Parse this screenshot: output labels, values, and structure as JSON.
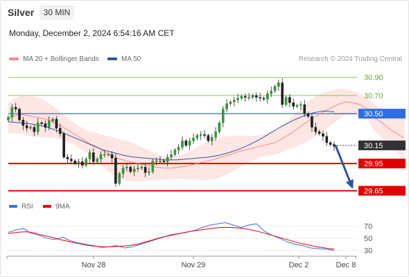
{
  "header": {
    "instrument": "Silver",
    "interval": "30 MIN",
    "datetime": "Monday, December 2, 2024 6:54:16 AM CET"
  },
  "legend": {
    "bollinger": {
      "label": "MA 20 + Bollinger Bands",
      "color": "#f28b82"
    },
    "ma50": {
      "label": "MA 50",
      "color": "#2f5597"
    },
    "copyright": "Research © 2024 Trading Central"
  },
  "price_levels": [
    {
      "value": "30.90",
      "color": "#8bc34a",
      "style": "line"
    },
    {
      "value": "30.70",
      "color": "#8bc34a",
      "style": "line"
    },
    {
      "value": "30.50",
      "color": "#2f6fe0",
      "style": "box"
    },
    {
      "value": "30.15",
      "color": "#333333",
      "style": "box"
    },
    {
      "value": "29.95",
      "color": "#e00000",
      "style": "box"
    },
    {
      "value": "29.65",
      "color": "#e00000",
      "style": "box"
    }
  ],
  "rsi_legend": {
    "rsi": {
      "label": "RSI",
      "color": "#3a6fd8"
    },
    "ma9": {
      "label": "9MA",
      "color": "#e00000"
    }
  },
  "rsi_levels": [
    "70",
    "50",
    "30"
  ],
  "x_axis": [
    "Nov 28",
    "Nov 29",
    "Dec 2",
    "Dec 8"
  ],
  "chart_data": [
    {
      "type": "candlestick",
      "y_range": [
        29.6,
        31.02
      ],
      "levels": [
        30.9,
        30.7,
        30.5,
        30.15,
        29.95,
        29.65
      ],
      "close": [
        30.46,
        30.57,
        30.55,
        30.43,
        30.37,
        30.34,
        30.35,
        30.3,
        30.4,
        30.39,
        30.35,
        30.42,
        30.44,
        30.34,
        30.28,
        30.02,
        30.0,
        29.98,
        29.95,
        29.97,
        29.93,
        30.0,
        30.07,
        29.97,
        30.0,
        30.05,
        30.05,
        30.05,
        30.01,
        29.73,
        29.84,
        29.9,
        29.91,
        29.86,
        29.89,
        29.9,
        29.91,
        29.85,
        29.86,
        29.98,
        29.98,
        29.98,
        29.97,
        30.02,
        30.05,
        30.1,
        30.13,
        30.2,
        30.15,
        30.2,
        30.23,
        30.26,
        30.27,
        30.26,
        30.2,
        30.24,
        30.3,
        30.4,
        30.55,
        30.61,
        30.63,
        30.65,
        30.67,
        30.69,
        30.68,
        30.68,
        30.7,
        30.68,
        30.67,
        30.66,
        30.72,
        30.75,
        30.8,
        30.84,
        30.6,
        30.68,
        30.62,
        30.58,
        30.59,
        30.6,
        30.5,
        30.47,
        30.35,
        30.3,
        30.28,
        30.25,
        30.18,
        30.16,
        30.14
      ],
      "ma20": [
        30.45,
        30.48,
        30.49,
        30.47,
        30.46,
        30.44,
        30.41,
        30.37,
        30.32,
        30.27,
        30.22,
        30.17,
        30.13,
        30.08,
        30.04,
        30.0,
        29.98,
        29.96,
        29.94,
        29.93,
        29.91,
        29.9,
        29.9,
        29.91,
        29.92,
        29.94,
        29.96,
        29.98,
        30.0,
        30.03,
        30.05,
        30.08,
        30.1,
        30.12,
        30.14,
        30.16,
        30.18,
        30.25,
        30.3,
        30.36,
        30.42,
        30.47,
        30.52,
        30.56,
        30.6,
        30.63,
        30.62,
        30.6,
        30.55,
        30.45,
        30.4,
        30.33,
        30.28,
        30.23
      ],
      "ma20_x": [
        0,
        2,
        4,
        6,
        8,
        10,
        12,
        14,
        16,
        18,
        20,
        22,
        24,
        26,
        28,
        30,
        32,
        34,
        36,
        38,
        40,
        42,
        44,
        46,
        48,
        50,
        52,
        54,
        56,
        58,
        60,
        62,
        64,
        66,
        68,
        70,
        72,
        75,
        77,
        79,
        81,
        83,
        85,
        87,
        89,
        91,
        93,
        95,
        97,
        99,
        101,
        103,
        105,
        107
      ],
      "ma50": [
        30.41,
        30.4,
        30.39,
        30.37,
        30.34,
        30.3,
        30.25,
        30.2,
        30.15,
        30.1,
        30.07,
        30.04,
        30.02,
        30.01,
        30.0,
        29.99,
        29.99,
        30.0,
        30.01,
        30.02,
        30.04,
        30.07,
        30.11,
        30.16,
        30.22,
        30.29,
        30.36,
        30.42,
        30.47,
        30.51,
        30.53,
        30.52
      ]
    },
    {
      "type": "line",
      "title": "RSI",
      "y_range": [
        25,
        80
      ],
      "series": [
        {
          "name": "RSI",
          "values": [
            60,
            64,
            66,
            58,
            55,
            50,
            48,
            52,
            46,
            43,
            40,
            38,
            35,
            36,
            38,
            34,
            36,
            40,
            44,
            48,
            52,
            56,
            58,
            60,
            63,
            68,
            72,
            74,
            76,
            72,
            68,
            72,
            74,
            62,
            55,
            50,
            44,
            40,
            38,
            34,
            33,
            32,
            30
          ]
        },
        {
          "name": "9MA",
          "values": [
            58,
            60,
            61,
            59,
            55,
            52,
            48,
            45,
            42,
            39,
            37,
            36,
            36,
            37,
            38,
            40,
            44,
            48,
            52,
            55,
            58,
            61,
            63,
            65,
            67,
            68,
            68,
            67,
            65,
            62,
            58,
            54,
            50,
            46,
            42,
            39,
            36,
            34,
            32
          ]
        }
      ]
    }
  ]
}
